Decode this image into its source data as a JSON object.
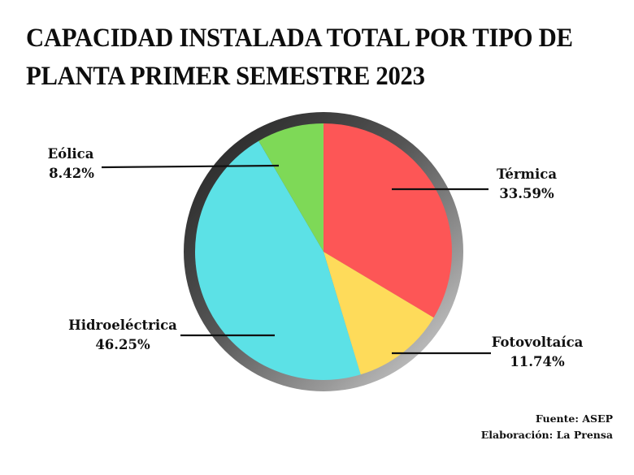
{
  "title": {
    "line1": "CAPACIDAD INSTALADA TOTAL POR TIPO DE",
    "line2": "PLANTA PRIMER SEMESTRE 2023"
  },
  "labels": {
    "eolica": {
      "name": "Eólica",
      "value": "8.42%"
    },
    "termica": {
      "name": "Térmica",
      "value": "33.59%"
    },
    "hidro": {
      "name": "Hidroeléctrica",
      "value": "46.25%"
    },
    "foto": {
      "name": "Fotovoltaíca",
      "value": "11.74%"
    }
  },
  "footer": {
    "source": "Fuente: ASEP",
    "credit": "Elaboración: La Prensa"
  },
  "colors": {
    "termica": "#fd5656",
    "fotovoltaica": "#fedb5a",
    "hidroelectrica": "#5ce1e6",
    "eolica": "#7ed957"
  },
  "chart_data": {
    "type": "pie",
    "title": "CAPACIDAD INSTALADA TOTAL POR TIPO DE PLANTA PRIMER SEMESTRE 2023",
    "categories": [
      "Térmica",
      "Fotovoltaíca",
      "Hidroeléctrica",
      "Eólica"
    ],
    "values": [
      33.59,
      11.74,
      46.25,
      8.42
    ],
    "colors": [
      "#fd5656",
      "#fedb5a",
      "#5ce1e6",
      "#7ed957"
    ],
    "start_angle": "12 o'clock, clockwise",
    "legend": "none (direct labels with leader lines)",
    "source": "Fuente: ASEP",
    "credit": "Elaboración: La Prensa"
  }
}
